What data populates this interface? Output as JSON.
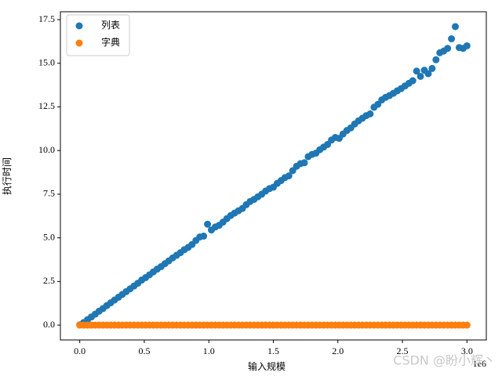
{
  "chart_data": {
    "type": "scatter",
    "x_label": "输入规模",
    "y_label": "执行时间",
    "x_offset_text": "1e6",
    "watermark": "CSDN @盼小辉丶",
    "legend_loc": "upper left",
    "xlim": [
      -150000,
      3150000
    ],
    "ylim": [
      -0.85,
      17.95
    ],
    "xticks": [
      {
        "value": 0,
        "label": "0.0"
      },
      {
        "value": 500000,
        "label": "0.5"
      },
      {
        "value": 1000000,
        "label": "1.0"
      },
      {
        "value": 1500000,
        "label": "1.5"
      },
      {
        "value": 2000000,
        "label": "2.0"
      },
      {
        "value": 2500000,
        "label": "2.5"
      },
      {
        "value": 3000000,
        "label": "3.0"
      }
    ],
    "yticks": [
      {
        "value": 0,
        "label": "0.0"
      },
      2.5,
      {
        "value": 5,
        "label": "5.0"
      },
      7.5,
      {
        "value": 10,
        "label": "10.0"
      },
      12.5,
      {
        "value": 15,
        "label": "15.0"
      },
      17.5
    ],
    "x": [
      0,
      30000,
      60000,
      90000,
      120000,
      150000,
      180000,
      210000,
      240000,
      270000,
      300000,
      330000,
      360000,
      390000,
      420000,
      450000,
      480000,
      510000,
      540000,
      570000,
      600000,
      630000,
      660000,
      690000,
      720000,
      750000,
      780000,
      810000,
      840000,
      870000,
      900000,
      930000,
      960000,
      990000,
      1020000,
      1050000,
      1080000,
      1110000,
      1140000,
      1170000,
      1200000,
      1230000,
      1260000,
      1290000,
      1320000,
      1350000,
      1380000,
      1410000,
      1440000,
      1470000,
      1500000,
      1530000,
      1560000,
      1590000,
      1620000,
      1650000,
      1680000,
      1710000,
      1740000,
      1770000,
      1800000,
      1830000,
      1860000,
      1890000,
      1920000,
      1950000,
      1980000,
      2010000,
      2040000,
      2070000,
      2100000,
      2130000,
      2160000,
      2190000,
      2220000,
      2250000,
      2280000,
      2310000,
      2340000,
      2370000,
      2400000,
      2430000,
      2460000,
      2490000,
      2520000,
      2550000,
      2580000,
      2610000,
      2640000,
      2670000,
      2700000,
      2730000,
      2760000,
      2790000,
      2820000,
      2850000,
      2880000,
      2910000,
      2940000,
      2970000,
      3000000
    ],
    "series": [
      {
        "name": "列表",
        "color": "#1f77b4",
        "values": [
          0.02,
          0.15,
          0.31,
          0.47,
          0.63,
          0.8,
          0.95,
          1.12,
          1.28,
          1.44,
          1.6,
          1.76,
          1.92,
          2.08,
          2.24,
          2.4,
          2.58,
          2.72,
          2.88,
          3.05,
          3.21,
          3.35,
          3.52,
          3.68,
          3.85,
          4.0,
          4.15,
          4.32,
          4.45,
          4.62,
          4.85,
          5.05,
          5.1,
          5.78,
          5.45,
          5.62,
          5.72,
          5.9,
          6.1,
          6.28,
          6.42,
          6.55,
          6.68,
          6.9,
          7.08,
          7.2,
          7.35,
          7.5,
          7.68,
          7.82,
          7.9,
          8.12,
          8.28,
          8.45,
          8.55,
          8.85,
          9.1,
          9.25,
          9.3,
          9.65,
          9.78,
          9.85,
          10.05,
          10.2,
          10.35,
          10.6,
          10.75,
          10.7,
          10.95,
          11.15,
          11.3,
          11.52,
          11.7,
          11.85,
          12.0,
          12.1,
          12.48,
          12.65,
          12.9,
          13.05,
          13.15,
          13.28,
          13.42,
          13.55,
          13.7,
          13.85,
          14.0,
          14.55,
          14.25,
          14.6,
          14.4,
          14.7,
          15.2,
          15.6,
          15.7,
          15.85,
          16.4,
          17.1,
          15.9,
          15.85,
          16.0
        ]
      },
      {
        "name": "字典",
        "color": "#ff7f0e",
        "values": [
          0,
          0,
          0,
          0,
          0,
          0,
          0,
          0,
          0,
          0,
          0,
          0,
          0,
          0,
          0,
          0,
          0,
          0,
          0,
          0,
          0,
          0,
          0,
          0,
          0,
          0,
          0,
          0,
          0,
          0,
          0,
          0,
          0,
          0,
          0,
          0,
          0,
          0,
          0,
          0,
          0,
          0,
          0,
          0,
          0,
          0,
          0,
          0,
          0,
          0,
          0,
          0,
          0,
          0,
          0,
          0,
          0,
          0,
          0,
          0,
          0,
          0,
          0,
          0,
          0,
          0,
          0,
          0,
          0,
          0,
          0,
          0,
          0,
          0,
          0,
          0,
          0,
          0,
          0,
          0,
          0,
          0,
          0,
          0,
          0,
          0,
          0,
          0,
          0,
          0,
          0,
          0,
          0,
          0,
          0,
          0,
          0,
          0,
          0,
          0,
          0
        ]
      }
    ]
  }
}
